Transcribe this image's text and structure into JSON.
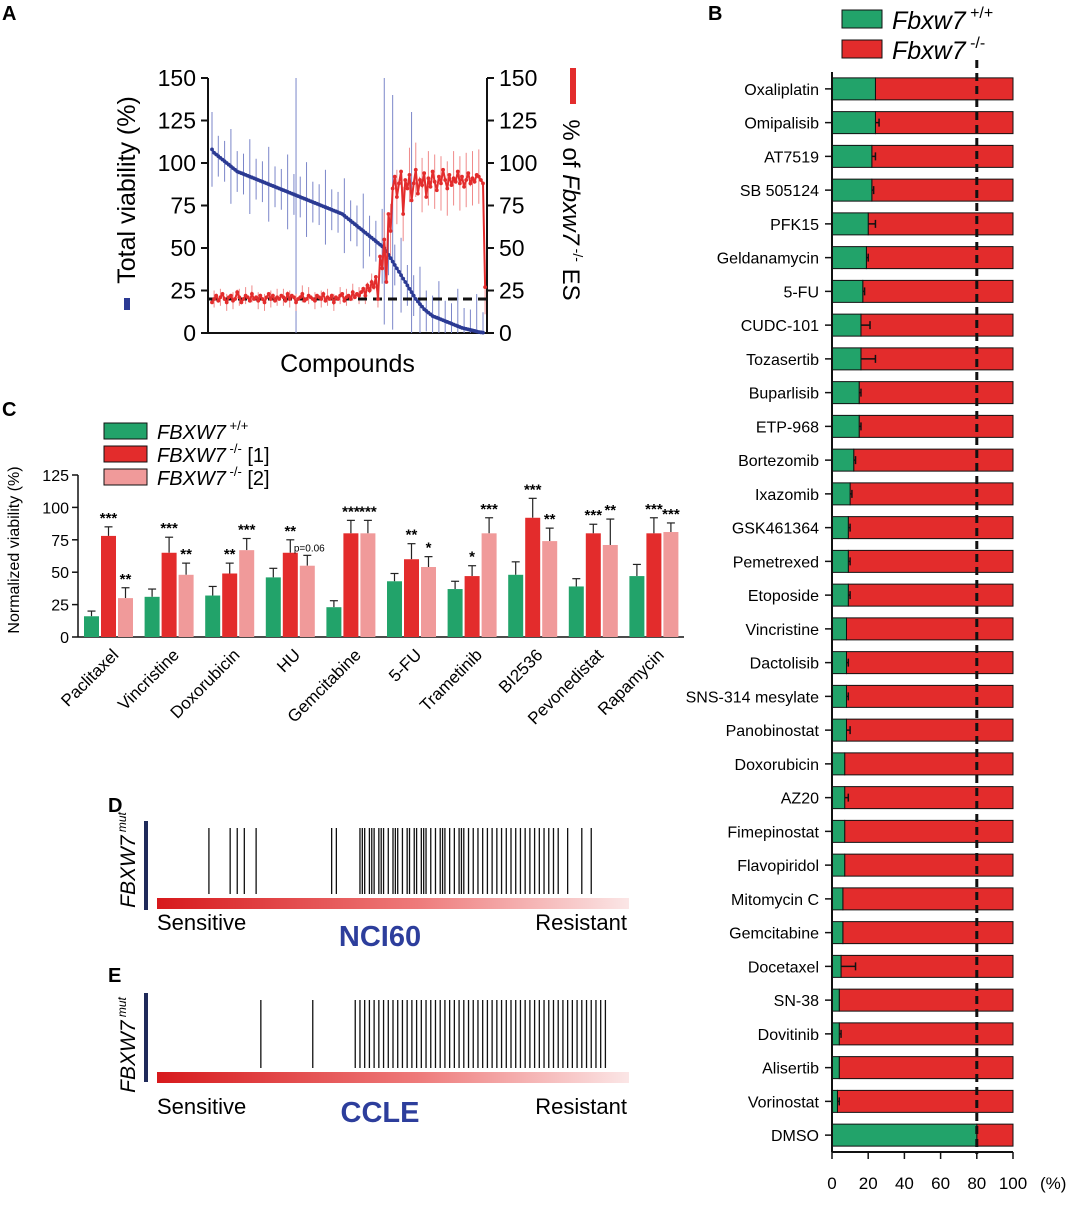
{
  "chart_data": [
    {
      "panel": "A",
      "type": "line",
      "xlabel": "Compounds",
      "ylabel_left": "Total viability (%)",
      "ylabel_right_parts": [
        "% of ",
        "Fbxw7",
        " -/-",
        " ES"
      ],
      "ylim": [
        0,
        150
      ],
      "yticks": [
        0,
        25,
        50,
        75,
        100,
        125,
        150
      ],
      "reference_line": 20,
      "series": [
        {
          "name": "Total viability",
          "color": "#2b3a93",
          "values": [
            108,
            106,
            105,
            104,
            103,
            102,
            101,
            100,
            99,
            98,
            97,
            96,
            95,
            94.5,
            94,
            93.5,
            93,
            92.5,
            92,
            91.5,
            91,
            90.5,
            90,
            89.5,
            89,
            88.5,
            88,
            87.5,
            87,
            86.5,
            86,
            85.5,
            85,
            84.5,
            84,
            83.5,
            83,
            82.5,
            82,
            81.5,
            81,
            80.5,
            80,
            79.5,
            79,
            78.5,
            78,
            77.5,
            77,
            76.5,
            76,
            75.5,
            75,
            74.5,
            74,
            73.5,
            73,
            72.5,
            72,
            71.5,
            71,
            70.5,
            70,
            69,
            68,
            67,
            66,
            65,
            64,
            63,
            62,
            61,
            60,
            59,
            58,
            57,
            56,
            55,
            54,
            53,
            52,
            51,
            50,
            48,
            46,
            44,
            42,
            40,
            38,
            36,
            34,
            32,
            30,
            28,
            26,
            24,
            22,
            20,
            18.5,
            17,
            15.5,
            14,
            13,
            12,
            11,
            10,
            9.5,
            9,
            8.5,
            8,
            7.5,
            7,
            6.5,
            6,
            5.5,
            5,
            4.5,
            4,
            3.5,
            3,
            2.7,
            2.4,
            2.1,
            1.8,
            1.5,
            1.2,
            0.9,
            0.6,
            0.4,
            0.2
          ]
        },
        {
          "name": "% of Fbxw7 -/- ES",
          "color": "#e32c2c",
          "values": [
            18,
            20,
            22,
            19,
            21,
            23,
            20,
            18,
            21,
            22,
            19,
            20,
            24,
            21,
            18,
            20,
            22,
            21,
            19,
            23,
            20,
            21,
            19,
            22,
            20,
            18,
            21,
            23,
            20,
            22,
            19,
            21,
            20,
            22,
            21,
            19,
            23,
            20,
            22,
            21,
            18,
            20,
            21,
            23,
            19,
            20,
            22,
            21,
            20,
            19,
            22,
            21,
            20,
            23,
            19,
            21,
            20,
            22,
            18,
            21,
            20,
            22,
            23,
            19,
            21,
            22,
            20,
            24,
            21,
            23,
            22,
            24,
            26,
            22,
            28,
            25,
            30,
            27,
            33,
            20,
            45,
            38,
            55,
            30,
            70,
            60,
            85,
            92,
            80,
            88,
            95,
            70,
            90,
            85,
            93,
            78,
            88,
            96,
            82,
            90,
            87,
            94,
            80,
            91,
            86,
            95,
            89,
            84,
            92,
            88,
            96,
            90,
            85,
            93,
            87,
            91,
            89,
            95,
            88,
            92,
            86,
            90,
            94,
            88,
            91,
            89,
            93,
            92,
            90,
            88,
            27
          ]
        }
      ]
    },
    {
      "panel": "B",
      "type": "bar",
      "orientation": "horizontal",
      "stacked": true,
      "xlabel": "(%)",
      "xlim": [
        0,
        100
      ],
      "xticks": [
        0,
        20,
        40,
        60,
        80,
        100
      ],
      "reference_line": 80,
      "legend": [
        {
          "name": "Fbxw7",
          "sup": " +/+",
          "color": "#22a36a"
        },
        {
          "name": "Fbxw7",
          "sup": " -/-",
          "color": "#e32c2c"
        }
      ],
      "categories": [
        "Oxaliplatin",
        "Omipalisib",
        "AT7519",
        "SB 505124",
        "PFK15",
        "Geldanamycin",
        "5-FU",
        "CUDC-101",
        "Tozasertib",
        "Buparlisib",
        "ETP-968",
        "Bortezomib",
        "Ixazomib",
        "GSK461364",
        "Pemetrexed",
        "Etoposide",
        "Vincristine",
        "Dactolisib",
        "SNS-314 mesylate",
        "Panobinostat",
        "Doxorubicin",
        "AZ20",
        "Fimepinostat",
        "Flavopiridol",
        "Mitomycin C",
        "Gemcitabine",
        "Docetaxel",
        "SN-38",
        "Dovitinib",
        "Alisertib",
        "Vorinostat",
        "DMSO"
      ],
      "values_wt": [
        24,
        24,
        22,
        22,
        20,
        19,
        17,
        16,
        16,
        15,
        15,
        12,
        10,
        9,
        9,
        9,
        8,
        8,
        8,
        8,
        7,
        7,
        7,
        7,
        6,
        6,
        5,
        4,
        4,
        4,
        3,
        80
      ],
      "errors_wt": [
        0,
        2,
        2,
        1,
        4,
        1,
        1,
        5,
        8,
        1,
        1,
        1,
        1,
        1,
        1,
        1,
        0,
        1,
        1,
        2,
        0,
        2,
        0,
        0,
        0,
        0,
        8,
        0,
        1,
        0,
        1,
        0
      ]
    },
    {
      "panel": "C",
      "type": "bar",
      "ylabel": "Normalized viability (%)",
      "ylim": [
        0,
        125
      ],
      "yticks": [
        0,
        25,
        50,
        75,
        100,
        125
      ],
      "legend": [
        {
          "name": "FBXW7",
          "sup": " +/+",
          "suffix": "",
          "color": "#22a36a"
        },
        {
          "name": "FBXW7",
          "sup": " -/-",
          "suffix": " [1]",
          "color": "#e32c2c"
        },
        {
          "name": "FBXW7",
          "sup": " -/-",
          "suffix": " [2]",
          "color": "#f09a9a"
        }
      ],
      "categories": [
        "Paclitaxel",
        "Vincristine",
        "Doxorubicin",
        "HU",
        "Gemcitabine",
        "5-FU",
        "Trametinib",
        "BI2536",
        "Pevonedistat",
        "Rapamycin"
      ],
      "series": [
        {
          "name": "FBXW7 +/+",
          "values": [
            16,
            31,
            32,
            46,
            23,
            43,
            37,
            48,
            39,
            47
          ],
          "errors": [
            4,
            6,
            7,
            7,
            5,
            6,
            6,
            10,
            6,
            9
          ]
        },
        {
          "name": "FBXW7 -/- [1]",
          "values": [
            78,
            65,
            49,
            65,
            80,
            60,
            47,
            92,
            80,
            80
          ],
          "errors": [
            7,
            12,
            8,
            10,
            10,
            12,
            8,
            15,
            7,
            12
          ]
        },
        {
          "name": "FBXW7 -/- [2]",
          "values": [
            30,
            48,
            67,
            55,
            80,
            54,
            80,
            74,
            71,
            81
          ],
          "errors": [
            8,
            9,
            9,
            8,
            10,
            8,
            12,
            10,
            20,
            7
          ]
        }
      ],
      "annotations_1": [
        "***",
        "***",
        "**",
        "**",
        "***",
        "**",
        "*",
        "***",
        "***",
        "***"
      ],
      "annotations_2": [
        "**",
        "**",
        "***",
        "p=0.06",
        "***",
        "*",
        "***",
        "**",
        "**",
        "***"
      ]
    },
    {
      "panel": "D",
      "type": "barcode",
      "ylabel": "FBXW7",
      "ylabel_sup": "mut",
      "dataset": "NCI60",
      "low_label": "Sensitive",
      "high_label": "Resistant",
      "mutant_rank_fractions": [
        0.11,
        0.155,
        0.17,
        0.185,
        0.21,
        0.37,
        0.38,
        0.43,
        0.435,
        0.44,
        0.45,
        0.455,
        0.46,
        0.47,
        0.475,
        0.48,
        0.49,
        0.5,
        0.505,
        0.51,
        0.52,
        0.53,
        0.535,
        0.545,
        0.55,
        0.56,
        0.565,
        0.57,
        0.58,
        0.59,
        0.6,
        0.605,
        0.61,
        0.62,
        0.63,
        0.64,
        0.645,
        0.65,
        0.66,
        0.67,
        0.68,
        0.69,
        0.7,
        0.71,
        0.72,
        0.73,
        0.74,
        0.75,
        0.76,
        0.77,
        0.78,
        0.79,
        0.8,
        0.81,
        0.82,
        0.83,
        0.84,
        0.85,
        0.87,
        0.9,
        0.92
      ]
    },
    {
      "panel": "E",
      "type": "barcode",
      "ylabel": "FBXW7",
      "ylabel_sup": "mut",
      "dataset": "CCLE",
      "low_label": "Sensitive",
      "high_label": "Resistant",
      "mutant_rank_fractions": [
        0.22,
        0.33,
        0.42,
        0.43,
        0.44,
        0.45,
        0.46,
        0.47,
        0.48,
        0.49,
        0.5,
        0.51,
        0.52,
        0.53,
        0.54,
        0.55,
        0.56,
        0.57,
        0.58,
        0.59,
        0.6,
        0.61,
        0.62,
        0.63,
        0.64,
        0.65,
        0.66,
        0.67,
        0.68,
        0.69,
        0.7,
        0.71,
        0.72,
        0.73,
        0.74,
        0.75,
        0.76,
        0.77,
        0.78,
        0.79,
        0.8,
        0.81,
        0.82,
        0.83,
        0.84,
        0.85,
        0.86,
        0.87,
        0.88,
        0.89,
        0.9,
        0.91,
        0.92,
        0.93,
        0.94,
        0.95
      ]
    }
  ],
  "panel_labels": {
    "a": "A",
    "b": "B",
    "c": "C",
    "d": "D",
    "e": "E"
  }
}
